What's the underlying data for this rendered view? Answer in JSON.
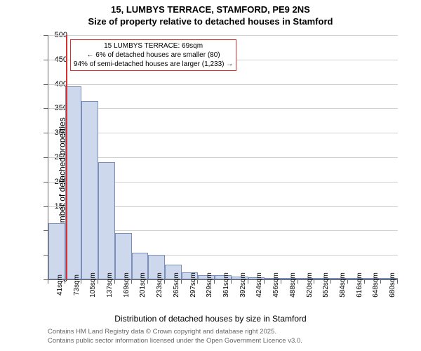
{
  "title_line1": "15, LUMBYS TERRACE, STAMFORD, PE9 2NS",
  "title_line2": "Size of property relative to detached houses in Stamford",
  "title_fontsize": 13,
  "y_axis_label": "Number of detached properties",
  "x_axis_label": "Distribution of detached houses by size in Stamford",
  "axis_label_fontsize": 12,
  "tick_fontsize": 11,
  "chart": {
    "type": "histogram",
    "ylim": [
      0,
      500
    ],
    "ytick_step": 50,
    "x_categories": [
      "41sqm",
      "73sqm",
      "105sqm",
      "137sqm",
      "169sqm",
      "201sqm",
      "233sqm",
      "265sqm",
      "297sqm",
      "329sqm",
      "361sqm",
      "392sqm",
      "424sqm",
      "456sqm",
      "488sqm",
      "520sqm",
      "552sqm",
      "584sqm",
      "616sqm",
      "648sqm",
      "680sqm"
    ],
    "values": [
      115,
      395,
      365,
      240,
      95,
      55,
      50,
      30,
      15,
      8,
      8,
      6,
      5,
      3,
      2,
      3,
      2,
      1,
      2,
      1,
      1
    ],
    "bar_fill": "#cdd8ec",
    "bar_border": "#7a8fb8",
    "background_color": "#ffffff",
    "grid_color": "#d0d0d0",
    "axis_color": "#666666"
  },
  "marker": {
    "position_category_index": 1,
    "line_color": "#d83030",
    "annotation_lines": [
      "15 LUMBYS TERRACE: 69sqm",
      "← 6% of detached houses are smaller (80)",
      "94% of semi-detached houses are larger (1,233) →"
    ],
    "annotation_border": "#d83030",
    "annotation_fontsize": 10
  },
  "footer": {
    "line1": "Contains HM Land Registry data © Crown copyright and database right 2025.",
    "line2": "Contains public sector information licensed under the Open Government Licence v3.0.",
    "fontsize": 9.5,
    "color": "#666666"
  }
}
